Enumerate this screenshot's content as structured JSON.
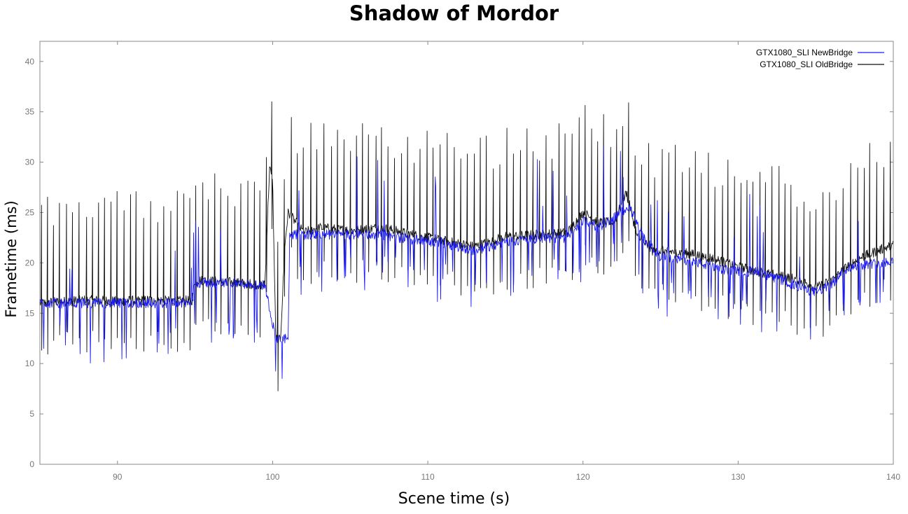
{
  "chart_data": {
    "type": "line",
    "title": "Shadow of Mordor",
    "xlabel": "Scene time (s)",
    "ylabel": "Frametime (ms)",
    "xlim": [
      85,
      140
    ],
    "ylim": [
      0,
      42
    ],
    "x_ticks": [
      90,
      100,
      110,
      120,
      130,
      140
    ],
    "y_ticks": [
      0,
      5,
      10,
      15,
      20,
      25,
      30,
      35,
      40
    ],
    "grid": false,
    "legend_position": "top-right",
    "series": [
      {
        "name": "GTX1080_SLI NewBridge",
        "color": "#1a1aff",
        "x": [
          85,
          88,
          90,
          92,
          94,
          94.8,
          95,
          97,
          99.5,
          100.2,
          100.5,
          101,
          101.1,
          101.5,
          103,
          105,
          107,
          109,
          111,
          113,
          115,
          117,
          119,
          120,
          121,
          122,
          123,
          124,
          125,
          127,
          129,
          131,
          133,
          134,
          135,
          136,
          137,
          138,
          140
        ],
        "values": [
          16,
          16,
          16,
          16,
          16,
          16,
          18,
          18,
          17.8,
          12.5,
          12.4,
          12.5,
          22.5,
          22.8,
          22.8,
          22.8,
          22.8,
          22.3,
          22,
          21.2,
          22.1,
          22.4,
          22.5,
          24.3,
          23.5,
          24.5,
          25.6,
          22.2,
          20.6,
          20.2,
          19.3,
          19.1,
          18.2,
          17.5,
          17.1,
          17.8,
          19.5,
          19.8,
          20.2
        ]
      },
      {
        "name": "GTX1080_SLI OldBridge",
        "color": "#111111",
        "x": [
          85,
          88,
          90,
          92,
          94,
          94.8,
          95,
          97,
          99.5,
          99.8,
          100,
          100.2,
          100.5,
          100.8,
          101,
          102,
          103,
          105,
          107,
          109,
          111,
          113,
          115,
          117,
          119,
          120,
          121,
          122,
          122.8,
          123.5,
          124.5,
          126,
          128,
          130,
          132,
          134,
          135,
          136,
          137,
          138,
          140
        ],
        "values": [
          16,
          16.3,
          16.2,
          16.3,
          16.2,
          16.3,
          18.3,
          18.1,
          17.8,
          29.5,
          28,
          12.5,
          12.3,
          22,
          25,
          23,
          23.5,
          23.2,
          23.5,
          22.8,
          22.2,
          21.6,
          22.6,
          22.8,
          23,
          25,
          24,
          24,
          27,
          22.6,
          21.2,
          21.1,
          20.6,
          19.6,
          18.9,
          18.3,
          17.5,
          18.2,
          19.6,
          20.6,
          21.8
        ]
      }
    ]
  }
}
